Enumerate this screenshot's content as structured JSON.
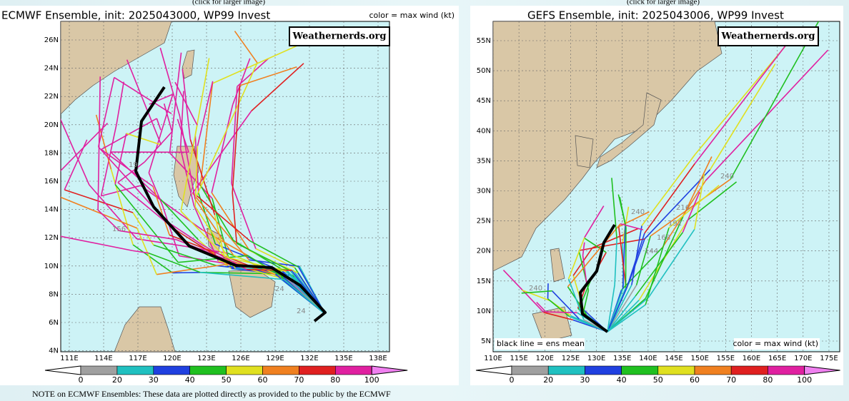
{
  "panels": [
    {
      "caption": "(click for larger image)",
      "title": "ECMWF Ensemble, init: 2025043000, WP99 Invest",
      "legend": "color = max wind (kt)",
      "credit": "Weathernerds.org",
      "lat_labels": [
        "26N",
        "24N",
        "22N",
        "20N",
        "18N",
        "16N",
        "14N",
        "12N",
        "10N",
        "8N",
        "6N",
        "4N"
      ],
      "lon_labels": [
        "111E",
        "114E",
        "117E",
        "120E",
        "123E",
        "126E",
        "129E",
        "132E",
        "135E",
        "138E"
      ],
      "colorbar": [
        0,
        20,
        30,
        40,
        50,
        60,
        70,
        80,
        100
      ],
      "hour_labels": [
        "24",
        "19",
        "156",
        "24"
      ]
    },
    {
      "caption": "(click for larger image)",
      "title": "GEFS Ensemble, init: 2025043006, WP99 Invest",
      "legend": "color = max wind (kt)",
      "credit": "Weathernerds.org",
      "mean_note": "black line = ens mean",
      "lat_labels": [
        "55N",
        "50N",
        "45N",
        "40N",
        "35N",
        "30N",
        "25N",
        "20N",
        "15N",
        "10N",
        "5N"
      ],
      "lon_labels": [
        "110E",
        "115E",
        "120E",
        "125E",
        "130E",
        "135E",
        "140E",
        "145E",
        "150E",
        "155E",
        "160E",
        "165E",
        "170E",
        "175E"
      ],
      "colorbar": [
        0,
        20,
        30,
        40,
        50,
        60,
        70,
        80,
        100
      ],
      "hour_labels": [
        "240",
        "216",
        "192",
        "168",
        "144",
        "240",
        "240"
      ]
    }
  ],
  "note": "NOTE on ECMWF Ensembles: These data are plotted directly as provided to the public by the ECMWF"
}
